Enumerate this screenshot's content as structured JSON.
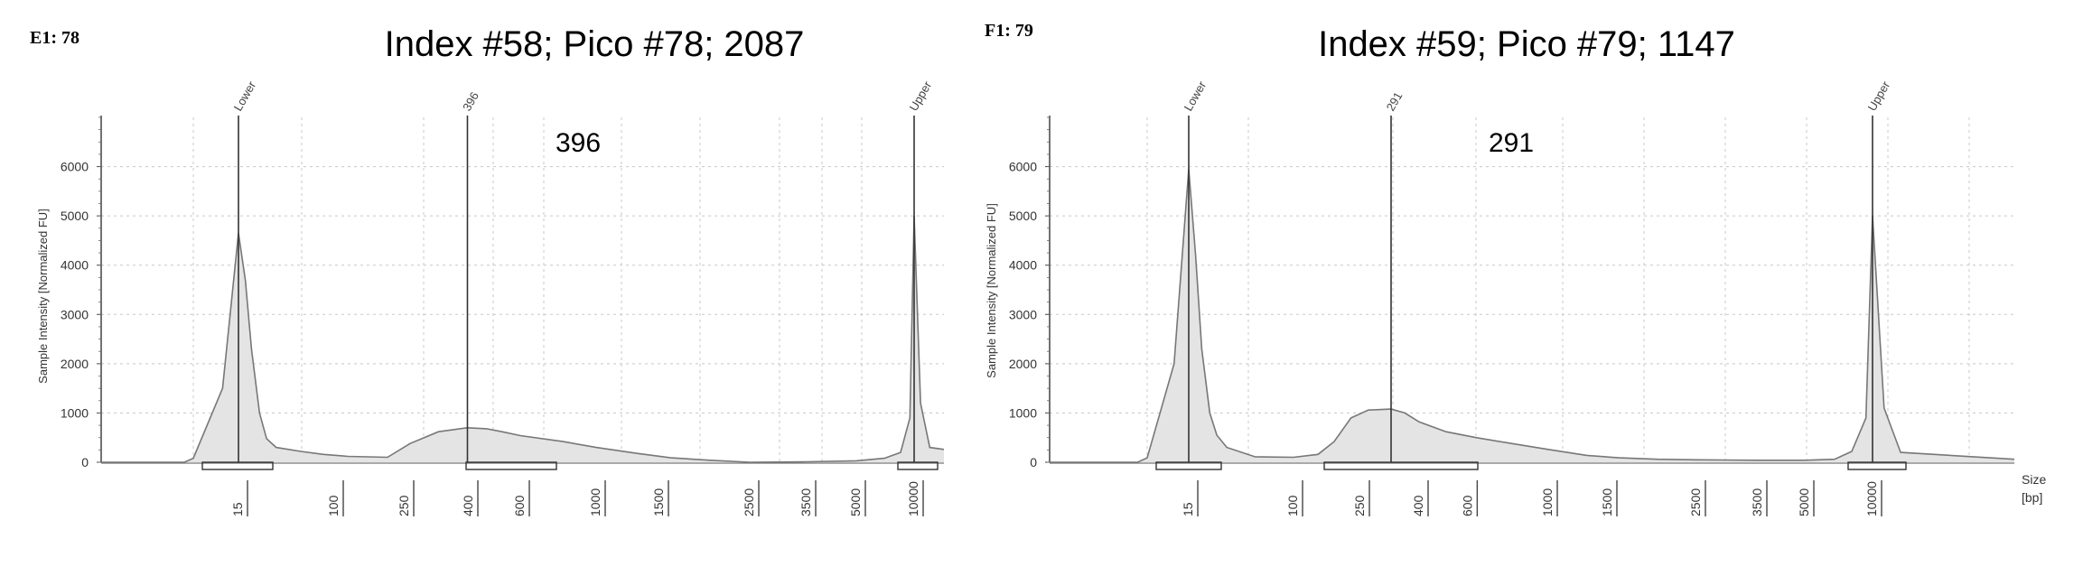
{
  "panels": [
    {
      "well_label": "E1: 78",
      "title": "Index #58; Pico #78; 2087",
      "peak_annotation": "396",
      "ylabel": "Sample Intensity [Normalized FU]",
      "xlabel": "",
      "chart_data": {
        "type": "area",
        "title": "Index #58; Pico #78; 2087",
        "xlabel": "",
        "ylabel": "Sample Intensity [Normalized FU]",
        "x_scale": "electropherogram (nonlinear, bp ladder)",
        "ylim": [
          0,
          7000
        ],
        "yticks": [
          0,
          1000,
          2000,
          3000,
          4000,
          5000,
          6000
        ],
        "xticks": [
          "15",
          "100",
          "250",
          "400",
          "600",
          "1000",
          "1500",
          "2500",
          "3500",
          "5000",
          "10000"
        ],
        "markers": [
          {
            "label": "Lower",
            "x_bp": 15,
            "y": 4650
          },
          {
            "label": "396",
            "x_bp": 396,
            "y": 700
          },
          {
            "label": "Upper",
            "x_bp": 10000,
            "y": 5000
          }
        ],
        "region_brackets_bp": [
          [
            15,
            28
          ],
          [
            380,
            700
          ],
          [
            9000,
            11500
          ]
        ],
        "trace": {
          "x_bp": [
            1,
            4,
            8,
            10,
            13,
            15,
            17,
            19,
            22,
            25,
            30,
            50,
            80,
            120,
            200,
            260,
            320,
            396,
            460,
            520,
            600,
            800,
            1000,
            1300,
            1600,
            2000,
            2500,
            3500,
            5000,
            7000,
            8500,
            9500,
            10000,
            10400,
            11000,
            12000
          ],
          "y": [
            0,
            0,
            0,
            80,
            1500,
            4650,
            3700,
            2300,
            1000,
            480,
            300,
            220,
            160,
            120,
            100,
            380,
            620,
            700,
            680,
            620,
            540,
            420,
            300,
            180,
            90,
            40,
            0,
            10,
            30,
            80,
            200,
            900,
            5000,
            1200,
            300,
            260
          ]
        }
      }
    },
    {
      "well_label": "F1: 79",
      "title": "Index #59; Pico #79; 1147",
      "peak_annotation": "291",
      "ylabel": "Sample Intensity [Normalized FU]",
      "xlabel": "Size [bp]",
      "chart_data": {
        "type": "area",
        "title": "Index #59; Pico #79; 1147",
        "xlabel": "Size [bp]",
        "ylabel": "Sample Intensity [Normalized FU]",
        "x_scale": "electropherogram (nonlinear, bp ladder)",
        "ylim": [
          0,
          7000
        ],
        "yticks": [
          0,
          1000,
          2000,
          3000,
          4000,
          5000,
          6000
        ],
        "xticks": [
          "15",
          "100",
          "250",
          "400",
          "600",
          "1000",
          "1500",
          "2500",
          "3500",
          "5000",
          "10000"
        ],
        "markers": [
          {
            "label": "Lower",
            "x_bp": 15,
            "y": 5950
          },
          {
            "label": "291",
            "x_bp": 291,
            "y": 1080
          },
          {
            "label": "Upper",
            "x_bp": 10000,
            "y": 5000
          }
        ],
        "region_brackets_bp": [
          [
            15,
            28
          ],
          [
            175,
            640
          ],
          [
            8500,
            11200
          ]
        ],
        "trace": {
          "x_bp": [
            1,
            4,
            8,
            10,
            13,
            15,
            17,
            19,
            22,
            25,
            30,
            50,
            100,
            140,
            175,
            220,
            260,
            291,
            340,
            400,
            500,
            640,
            800,
            1000,
            1300,
            1600,
            2000,
            2500,
            3500,
            5000,
            7000,
            8500,
            9500,
            10000,
            10400,
            11000,
            13000
          ],
          "y": [
            0,
            0,
            0,
            90,
            2000,
            5950,
            4200,
            2300,
            1000,
            550,
            300,
            110,
            100,
            160,
            420,
            900,
            1060,
            1080,
            1000,
            820,
            620,
            500,
            380,
            260,
            140,
            90,
            60,
            50,
            40,
            40,
            60,
            220,
            900,
            5000,
            1100,
            200,
            60
          ]
        }
      }
    }
  ]
}
